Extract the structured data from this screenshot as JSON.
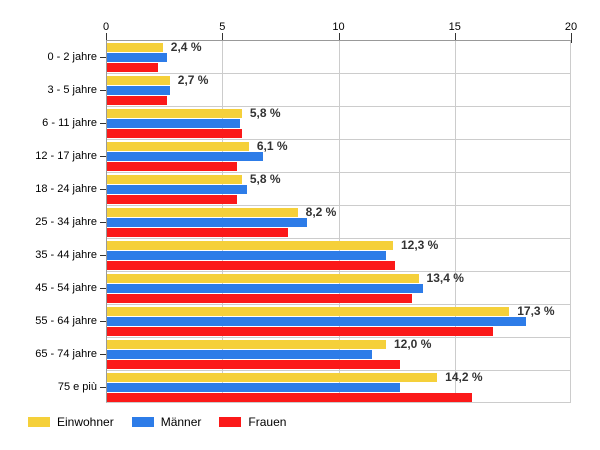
{
  "chart_data": {
    "type": "bar",
    "orientation": "horizontal",
    "title": "",
    "xlabel": "",
    "ylabel": "",
    "xlim": [
      0,
      20
    ],
    "x_ticks": [
      0,
      5,
      10,
      15,
      20
    ],
    "grid": true,
    "legend_position": "bottom",
    "categories": [
      "0 - 2 jahre",
      "3 - 5 jahre",
      "6 - 11 jahre",
      "12 - 17 jahre",
      "18 - 24 jahre",
      "25 - 34 jahre",
      "35 - 44 jahre",
      "45 - 54 jahre",
      "55 - 64 jahre",
      "65 - 74 jahre",
      "75 e più"
    ],
    "series": [
      {
        "name": "Einwohner",
        "color": "#F5D03A",
        "values": [
          2.4,
          2.7,
          5.8,
          6.1,
          5.8,
          8.2,
          12.3,
          13.4,
          17.3,
          12.0,
          14.2
        ]
      },
      {
        "name": "Männer",
        "color": "#2D7CE8",
        "values": [
          2.6,
          2.7,
          5.7,
          6.7,
          6.0,
          8.6,
          12.0,
          13.6,
          18.0,
          11.4,
          12.6
        ]
      },
      {
        "name": "Frauen",
        "color": "#FB1919",
        "values": [
          2.2,
          2.6,
          5.8,
          5.6,
          5.6,
          7.8,
          12.4,
          13.1,
          16.6,
          12.6,
          15.7
        ]
      }
    ],
    "value_labels": [
      "2,4 %",
      "2,7 %",
      "5,8 %",
      "6,1 %",
      "5,8 %",
      "8,2 %",
      "12,3 %",
      "13,4 %",
      "17,3 %",
      "12,0 %",
      "14,2 %"
    ],
    "colors": {
      "grid": "#cccccc",
      "axis": "#999999",
      "tick": "#333333",
      "text": "#000000",
      "value_label": "#333333"
    }
  },
  "legend": {
    "items": [
      {
        "label": "Einwohner",
        "color": "#F5D03A"
      },
      {
        "label": "Männer",
        "color": "#2D7CE8"
      },
      {
        "label": "Frauen",
        "color": "#FB1919"
      }
    ]
  }
}
